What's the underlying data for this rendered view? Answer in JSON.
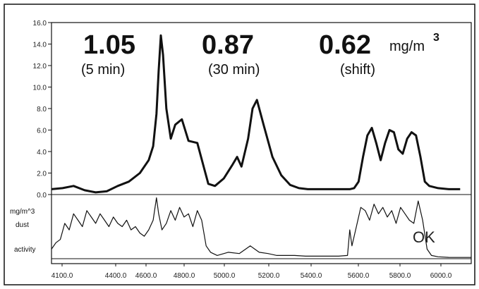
{
  "chart_data": {
    "type": "line",
    "title": "",
    "xlabel": "",
    "ylabel": "",
    "xlim": [
      4100,
      6000
    ],
    "ylim": [
      0,
      16
    ],
    "grid": false,
    "legend": "none",
    "x_ticks": [
      "4100.0",
      "4400.0",
      "4600.0",
      "4800.0",
      "5000.0",
      "5200.0",
      "5400.0",
      "5600.0",
      "5800.0",
      "6000.0"
    ],
    "y_ticks": [
      "0.0",
      "2.0",
      "4.0",
      "6.0",
      "8.0",
      "10.0",
      "12.0",
      "14.0",
      "16.0"
    ],
    "series": [
      {
        "role": "dust",
        "color": "#111111",
        "x": [
          4100,
          4150,
          4200,
          4250,
          4300,
          4350,
          4400,
          4450,
          4500,
          4540,
          4560,
          4575,
          4585,
          4595,
          4605,
          4620,
          4640,
          4660,
          4690,
          4720,
          4760,
          4790,
          4810,
          4840,
          4880,
          4920,
          4940,
          4960,
          4990,
          5010,
          5030,
          5060,
          5100,
          5140,
          5180,
          5220,
          5260,
          5300,
          5340,
          5380,
          5420,
          5450,
          5470,
          5490,
          5510,
          5530,
          5550,
          5570,
          5590,
          5610,
          5630,
          5650,
          5670,
          5690,
          5710,
          5730,
          5750,
          5770,
          5790,
          5810,
          5850,
          5900,
          5950
        ],
        "y": [
          0.5,
          0.6,
          0.8,
          0.4,
          0.2,
          0.3,
          0.8,
          1.2,
          2.0,
          3.2,
          4.5,
          7.5,
          11.5,
          14.8,
          13.0,
          8.0,
          5.2,
          6.5,
          7.0,
          5.0,
          4.8,
          2.5,
          1.0,
          0.8,
          1.5,
          2.8,
          3.5,
          2.6,
          5.2,
          8.0,
          8.8,
          6.5,
          3.5,
          1.8,
          0.9,
          0.6,
          0.5,
          0.5,
          0.5,
          0.5,
          0.5,
          0.5,
          0.6,
          1.2,
          3.5,
          5.5,
          6.2,
          4.8,
          3.2,
          4.8,
          6.0,
          5.8,
          4.2,
          3.8,
          5.2,
          5.8,
          5.5,
          3.5,
          1.2,
          0.8,
          0.6,
          0.5,
          0.5
        ]
      },
      {
        "role": "activity",
        "color": "#111111",
        "x": [
          4100,
          4120,
          4140,
          4160,
          4180,
          4200,
          4220,
          4240,
          4260,
          4280,
          4300,
          4320,
          4340,
          4360,
          4380,
          4400,
          4420,
          4440,
          4460,
          4480,
          4500,
          4520,
          4540,
          4560,
          4575,
          4585,
          4600,
          4620,
          4640,
          4660,
          4680,
          4700,
          4720,
          4740,
          4760,
          4780,
          4800,
          4820,
          4850,
          4900,
          4950,
          5000,
          5020,
          5040,
          5080,
          5120,
          5160,
          5200,
          5250,
          5300,
          5350,
          5400,
          5440,
          5450,
          5460,
          5480,
          5500,
          5520,
          5540,
          5560,
          5580,
          5600,
          5620,
          5640,
          5660,
          5680,
          5700,
          5720,
          5740,
          5760,
          5780,
          5800,
          5820,
          5850,
          5900,
          5950,
          6000
        ],
        "y": [
          0.15,
          0.25,
          0.3,
          0.55,
          0.45,
          0.7,
          0.6,
          0.5,
          0.75,
          0.65,
          0.55,
          0.7,
          0.6,
          0.5,
          0.65,
          0.55,
          0.5,
          0.6,
          0.45,
          0.5,
          0.4,
          0.35,
          0.45,
          0.6,
          0.95,
          0.7,
          0.45,
          0.55,
          0.75,
          0.6,
          0.8,
          0.65,
          0.7,
          0.5,
          0.75,
          0.6,
          0.2,
          0.1,
          0.05,
          0.1,
          0.08,
          0.2,
          0.15,
          0.1,
          0.08,
          0.05,
          0.05,
          0.05,
          0.04,
          0.04,
          0.04,
          0.04,
          0.05,
          0.45,
          0.2,
          0.5,
          0.8,
          0.75,
          0.6,
          0.85,
          0.7,
          0.8,
          0.65,
          0.75,
          0.55,
          0.8,
          0.7,
          0.6,
          0.55,
          0.9,
          0.6,
          0.15,
          0.05,
          0.03,
          0.02,
          0.02,
          0.02
        ]
      }
    ],
    "annotations": [
      {
        "value": "1.05",
        "label": "(5 min)"
      },
      {
        "value": "0.87",
        "label": "(30 min)"
      },
      {
        "value": "0.62",
        "label": "(shift)"
      }
    ],
    "unit_label": "mg/m",
    "unit_superscript": "3",
    "side_labels": [
      "mg/m^3",
      "dust",
      "activity"
    ],
    "status_label": "OK"
  }
}
